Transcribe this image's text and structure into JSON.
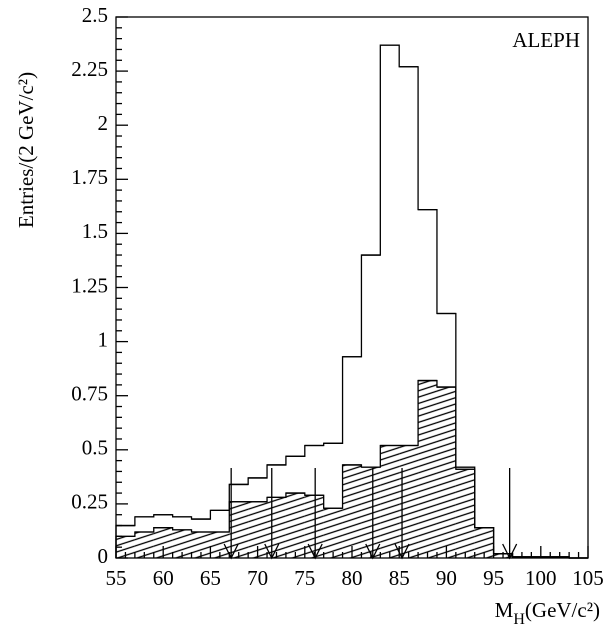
{
  "chart_data": {
    "type": "histogram",
    "annotation": "ALEPH",
    "y_label": "Entries/(2 GeV/c²)",
    "x_label": {
      "main": "M",
      "sub": "H",
      "unit": "(GeV/c²)"
    },
    "bins": [
      55,
      57,
      59,
      61,
      63,
      65,
      67,
      69,
      71,
      73,
      75,
      77,
      79,
      81,
      83,
      85,
      87,
      89,
      91,
      93,
      95,
      97,
      99,
      101,
      103,
      105
    ],
    "series": [
      {
        "color": "#000000",
        "values": [
          0.15,
          0.19,
          0.2,
          0.19,
          0.18,
          0.22,
          0.34,
          0.37,
          0.43,
          0.47,
          0.52,
          0.53,
          0.93,
          1.4,
          2.37,
          2.27,
          1.61,
          1.13,
          0.42,
          0.14,
          0.02,
          0.005,
          0.005,
          0.005,
          0
        ]
      },
      {
        "color": "#000000",
        "hatch": true,
        "values": [
          0.1,
          0.12,
          0.14,
          0.13,
          0.12,
          0.12,
          0.26,
          0.26,
          0.28,
          0.3,
          0.29,
          0.23,
          0.43,
          0.42,
          0.52,
          0.52,
          0.82,
          0.79,
          0.41,
          0.14,
          0.02,
          0.005,
          0.005,
          0.005,
          0
        ]
      }
    ],
    "arrows": [
      67.2,
      71.5,
      76.1,
      82.2,
      85.3,
      96.7
    ],
    "xlim": [
      55,
      105
    ],
    "ylim": [
      0,
      2.5
    ],
    "xticks": [
      55,
      60,
      65,
      70,
      75,
      80,
      85,
      90,
      95,
      100,
      105
    ],
    "yticks": [
      0,
      0.25,
      0.5,
      0.75,
      1,
      1.25,
      1.5,
      1.75,
      2,
      2.25,
      2.5
    ]
  }
}
